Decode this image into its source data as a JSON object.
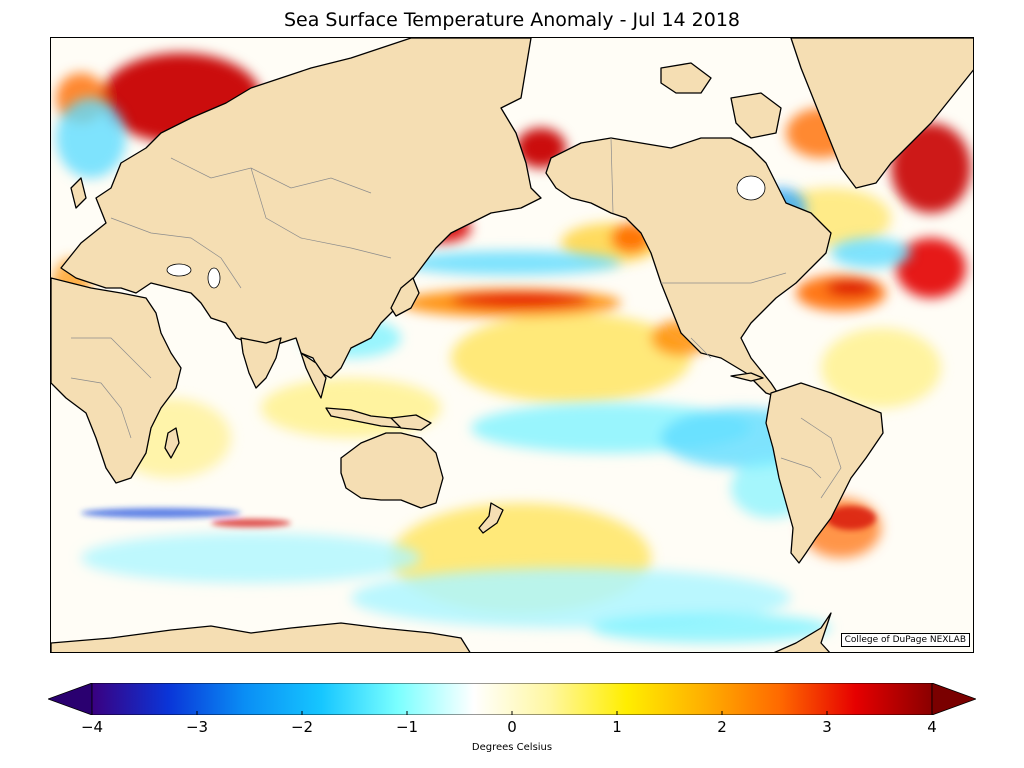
{
  "title": "Sea Surface Temperature Anomaly - Jul 14 2018",
  "credit": "College of DuPage NEXLAB",
  "colorbar": {
    "label": "Degrees Celsius",
    "min": -4,
    "max": 4,
    "ticks": [
      "−4",
      "−3",
      "−2",
      "−1",
      "0",
      "1",
      "2",
      "3",
      "4"
    ],
    "tick_values": [
      -4,
      -3,
      -2,
      -1,
      0,
      1,
      2,
      3,
      4
    ],
    "colors": [
      "#3a0080",
      "#0a35d8",
      "#0a8ef5",
      "#16c6ff",
      "#7affff",
      "#ffffff",
      "#fff7a0",
      "#ffee00",
      "#ffb000",
      "#ff6a00",
      "#e60000",
      "#8a0000"
    ],
    "extend": "both"
  },
  "colors": {
    "land": "#f5deb3",
    "coastline": "#000000",
    "border": "#8c8c8c"
  }
}
